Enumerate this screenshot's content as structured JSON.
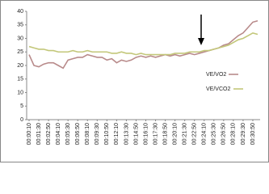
{
  "chart_data": {
    "type": "line",
    "categories": [
      "00:00:10",
      null,
      "00:01:30",
      null,
      "00:02:50",
      null,
      "00:04:10",
      null,
      "00:05:30",
      null,
      "00:06:50",
      null,
      "00:08:10",
      null,
      "00:09:30",
      null,
      "00:10:50",
      null,
      "00:12:10",
      null,
      "00:13:30",
      null,
      "00:14:50",
      null,
      "00:16:10",
      null,
      "00:17:30",
      null,
      "00:18:50",
      null,
      "00:20:10",
      null,
      "00:21:30",
      null,
      "00:22:50",
      null,
      "00:24:10",
      null,
      "00:25:30",
      null,
      "00:26:50",
      null,
      "00:28:10",
      null,
      "00:29:30",
      null,
      "00:30:50",
      null
    ],
    "series": [
      {
        "name": "VE/VO2",
        "color": "#b88a8a",
        "values": [
          24,
          20,
          19.5,
          20.5,
          21,
          21,
          20,
          19,
          22,
          22.5,
          23,
          23,
          24,
          23.5,
          23,
          23,
          22,
          22.5,
          21,
          22,
          21.5,
          22,
          23,
          23.5,
          23,
          23.5,
          23,
          23.5,
          24,
          23.5,
          24,
          23.5,
          24,
          24.5,
          24,
          24.5,
          25,
          25.5,
          26,
          26.5,
          27.5,
          28,
          29.5,
          31,
          32,
          34,
          36,
          36.5
        ]
      },
      {
        "name": "VE/VCO2",
        "color": "#c3c77a",
        "values": [
          27,
          26.5,
          26,
          26,
          25.5,
          25.5,
          25,
          25,
          25,
          25.5,
          25,
          25,
          25.5,
          25,
          25,
          25,
          25,
          24.5,
          24.5,
          25,
          24.5,
          24.5,
          24,
          24.5,
          24,
          24,
          24,
          24,
          24,
          24,
          24.5,
          24.5,
          24.5,
          25,
          25,
          25,
          25.5,
          25.5,
          26,
          26.5,
          27,
          27.5,
          28.5,
          29.5,
          30,
          31,
          32,
          31.5
        ]
      }
    ],
    "ylim": [
      0,
      40
    ],
    "yticks": [
      0,
      5,
      10,
      15,
      20,
      25,
      30,
      35,
      40
    ],
    "grid": false
  }
}
